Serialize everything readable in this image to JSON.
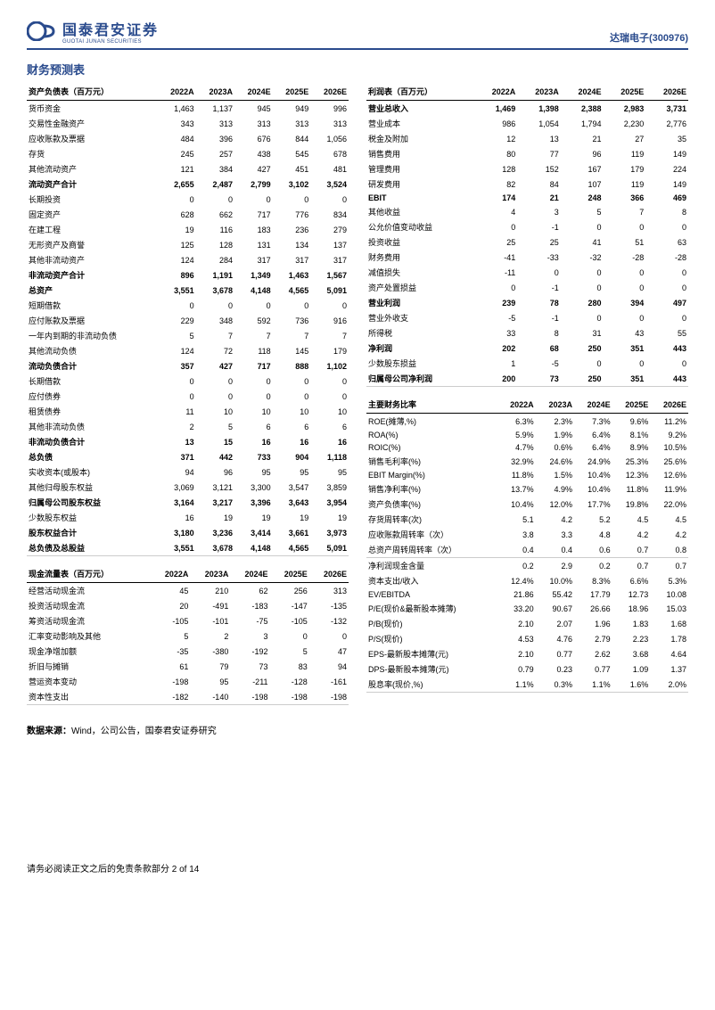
{
  "header": {
    "logo_cn": "国泰君安证券",
    "logo_en": "GUOTAI JUNAN SECURITIES",
    "stock": "达瑞电子(300976)",
    "logo_color": "#2a4b8d"
  },
  "title": "财务预测表",
  "years": [
    "2022A",
    "2023A",
    "2024E",
    "2025E",
    "2026E"
  ],
  "balance_sheet": {
    "title": "资产负债表（百万元）",
    "rows": [
      {
        "l": "货币资金",
        "v": [
          "1,463",
          "1,137",
          "945",
          "949",
          "996"
        ]
      },
      {
        "l": "交易性金融资产",
        "v": [
          "343",
          "313",
          "313",
          "313",
          "313"
        ]
      },
      {
        "l": "应收账款及票据",
        "v": [
          "484",
          "396",
          "676",
          "844",
          "1,056"
        ]
      },
      {
        "l": "存货",
        "v": [
          "245",
          "257",
          "438",
          "545",
          "678"
        ]
      },
      {
        "l": "其他流动资产",
        "v": [
          "121",
          "384",
          "427",
          "451",
          "481"
        ]
      },
      {
        "l": "流动资产合计",
        "v": [
          "2,655",
          "2,487",
          "2,799",
          "3,102",
          "3,524"
        ],
        "b": 1
      },
      {
        "l": "长期投资",
        "v": [
          "0",
          "0",
          "0",
          "0",
          "0"
        ]
      },
      {
        "l": "固定资产",
        "v": [
          "628",
          "662",
          "717",
          "776",
          "834"
        ]
      },
      {
        "l": "在建工程",
        "v": [
          "19",
          "116",
          "183",
          "236",
          "279"
        ]
      },
      {
        "l": "无形资产及商誉",
        "v": [
          "125",
          "128",
          "131",
          "134",
          "137"
        ]
      },
      {
        "l": "其他非流动资产",
        "v": [
          "124",
          "284",
          "317",
          "317",
          "317"
        ]
      },
      {
        "l": "非流动资产合计",
        "v": [
          "896",
          "1,191",
          "1,349",
          "1,463",
          "1,567"
        ],
        "b": 1
      },
      {
        "l": "总资产",
        "v": [
          "3,551",
          "3,678",
          "4,148",
          "4,565",
          "5,091"
        ],
        "b": 1
      },
      {
        "l": "短期借款",
        "v": [
          "0",
          "0",
          "0",
          "0",
          "0"
        ]
      },
      {
        "l": "应付账款及票据",
        "v": [
          "229",
          "348",
          "592",
          "736",
          "916"
        ]
      },
      {
        "l": "一年内到期的非流动负债",
        "v": [
          "5",
          "7",
          "7",
          "7",
          "7"
        ]
      },
      {
        "l": "其他流动负债",
        "v": [
          "124",
          "72",
          "118",
          "145",
          "179"
        ]
      },
      {
        "l": "流动负债合计",
        "v": [
          "357",
          "427",
          "717",
          "888",
          "1,102"
        ],
        "b": 1
      },
      {
        "l": "长期借款",
        "v": [
          "0",
          "0",
          "0",
          "0",
          "0"
        ]
      },
      {
        "l": "应付债券",
        "v": [
          "0",
          "0",
          "0",
          "0",
          "0"
        ]
      },
      {
        "l": "租赁债券",
        "v": [
          "11",
          "10",
          "10",
          "10",
          "10"
        ]
      },
      {
        "l": "其他非流动负债",
        "v": [
          "2",
          "5",
          "6",
          "6",
          "6"
        ]
      },
      {
        "l": "非流动负债合计",
        "v": [
          "13",
          "15",
          "16",
          "16",
          "16"
        ],
        "b": 1
      },
      {
        "l": "总负债",
        "v": [
          "371",
          "442",
          "733",
          "904",
          "1,118"
        ],
        "b": 1
      },
      {
        "l": "实收资本(或股本)",
        "v": [
          "94",
          "96",
          "95",
          "95",
          "95"
        ]
      },
      {
        "l": "其他归母股东权益",
        "v": [
          "3,069",
          "3,121",
          "3,300",
          "3,547",
          "3,859"
        ]
      },
      {
        "l": "归属母公司股东权益",
        "v": [
          "3,164",
          "3,217",
          "3,396",
          "3,643",
          "3,954"
        ],
        "b": 1
      },
      {
        "l": "少数股东权益",
        "v": [
          "16",
          "19",
          "19",
          "19",
          "19"
        ]
      },
      {
        "l": "股东权益合计",
        "v": [
          "3,180",
          "3,236",
          "3,414",
          "3,661",
          "3,973"
        ],
        "b": 1
      },
      {
        "l": "总负债及总股益",
        "v": [
          "3,551",
          "3,678",
          "4,148",
          "4,565",
          "5,091"
        ],
        "b": 1,
        "sep": 1
      }
    ]
  },
  "income": {
    "title": "利润表（百万元）",
    "rows": [
      {
        "l": "营业总收入",
        "v": [
          "1,469",
          "1,398",
          "2,388",
          "2,983",
          "3,731"
        ],
        "b": 1
      },
      {
        "l": "营业成本",
        "v": [
          "986",
          "1,054",
          "1,794",
          "2,230",
          "2,776"
        ]
      },
      {
        "l": "税金及附加",
        "v": [
          "12",
          "13",
          "21",
          "27",
          "35"
        ]
      },
      {
        "l": "销售费用",
        "v": [
          "80",
          "77",
          "96",
          "119",
          "149"
        ]
      },
      {
        "l": "管理费用",
        "v": [
          "128",
          "152",
          "167",
          "179",
          "224"
        ]
      },
      {
        "l": "研发费用",
        "v": [
          "82",
          "84",
          "107",
          "119",
          "149"
        ]
      },
      {
        "l": "EBIT",
        "v": [
          "174",
          "21",
          "248",
          "366",
          "469"
        ],
        "b": 1
      },
      {
        "l": "其他收益",
        "v": [
          "4",
          "3",
          "5",
          "7",
          "8"
        ]
      },
      {
        "l": "公允价值变动收益",
        "v": [
          "0",
          "-1",
          "0",
          "0",
          "0"
        ]
      },
      {
        "l": "投资收益",
        "v": [
          "25",
          "25",
          "41",
          "51",
          "63"
        ]
      },
      {
        "l": "财务费用",
        "v": [
          "-41",
          "-33",
          "-32",
          "-28",
          "-28"
        ]
      },
      {
        "l": "减值损失",
        "v": [
          "-11",
          "0",
          "0",
          "0",
          "0"
        ]
      },
      {
        "l": "资产处置损益",
        "v": [
          "0",
          "-1",
          "0",
          "0",
          "0"
        ]
      },
      {
        "l": "营业利润",
        "v": [
          "239",
          "78",
          "280",
          "394",
          "497"
        ],
        "b": 1
      },
      {
        "l": "营业外收支",
        "v": [
          "-5",
          "-1",
          "0",
          "0",
          "0"
        ]
      },
      {
        "l": "所得税",
        "v": [
          "33",
          "8",
          "31",
          "43",
          "55"
        ]
      },
      {
        "l": "净利润",
        "v": [
          "202",
          "68",
          "250",
          "351",
          "443"
        ],
        "b": 1
      },
      {
        "l": "少数股东损益",
        "v": [
          "1",
          "-5",
          "0",
          "0",
          "0"
        ]
      },
      {
        "l": "归属母公司净利润",
        "v": [
          "200",
          "73",
          "250",
          "351",
          "443"
        ],
        "b": 1,
        "sep": 1
      }
    ]
  },
  "ratios": {
    "title": "主要财务比率",
    "rows": [
      {
        "l": "ROE(摊薄,%)",
        "v": [
          "6.3%",
          "2.3%",
          "7.3%",
          "9.6%",
          "11.2%"
        ]
      },
      {
        "l": "ROA(%)",
        "v": [
          "5.9%",
          "1.9%",
          "6.4%",
          "8.1%",
          "9.2%"
        ]
      },
      {
        "l": "ROIC(%)",
        "v": [
          "4.7%",
          "0.6%",
          "6.4%",
          "8.9%",
          "10.5%"
        ]
      },
      {
        "l": "销售毛利率(%)",
        "v": [
          "32.9%",
          "24.6%",
          "24.9%",
          "25.3%",
          "25.6%"
        ]
      },
      {
        "l": "EBIT Margin(%)",
        "v": [
          "11.8%",
          "1.5%",
          "10.4%",
          "12.3%",
          "12.6%"
        ]
      },
      {
        "l": "销售净利率(%)",
        "v": [
          "13.7%",
          "4.9%",
          "10.4%",
          "11.8%",
          "11.9%"
        ]
      },
      {
        "l": "资产负债率(%)",
        "v": [
          "10.4%",
          "12.0%",
          "17.7%",
          "19.8%",
          "22.0%"
        ]
      },
      {
        "l": "存货周转率(次)",
        "v": [
          "5.1",
          "4.2",
          "5.2",
          "4.5",
          "4.5"
        ]
      },
      {
        "l": "应收账款周转率（次）",
        "v": [
          "3.8",
          "3.3",
          "4.8",
          "4.2",
          "4.2"
        ]
      },
      {
        "l": "总资产周转周转率（次）",
        "v": [
          "0.4",
          "0.4",
          "0.6",
          "0.7",
          "0.8"
        ],
        "sep": 1
      },
      {
        "l": "净利润现金含量",
        "v": [
          "0.2",
          "2.9",
          "0.2",
          "0.7",
          "0.7"
        ]
      },
      {
        "l": "资本支出/收入",
        "v": [
          "12.4%",
          "10.0%",
          "8.3%",
          "6.6%",
          "5.3%"
        ]
      },
      {
        "l": "EV/EBITDA",
        "v": [
          "21.86",
          "55.42",
          "17.79",
          "12.73",
          "10.08"
        ]
      },
      {
        "l": "P/E(现价&最新股本摊薄)",
        "v": [
          "33.20",
          "90.67",
          "26.66",
          "18.96",
          "15.03"
        ]
      },
      {
        "l": "P/B(现价)",
        "v": [
          "2.10",
          "2.07",
          "1.96",
          "1.83",
          "1.68"
        ]
      },
      {
        "l": "P/S(现价)",
        "v": [
          "4.53",
          "4.76",
          "2.79",
          "2.23",
          "1.78"
        ]
      },
      {
        "l": "EPS-最新股本摊薄(元)",
        "v": [
          "2.10",
          "0.77",
          "2.62",
          "3.68",
          "4.64"
        ]
      },
      {
        "l": "DPS-最新股本摊薄(元)",
        "v": [
          "0.79",
          "0.23",
          "0.77",
          "1.09",
          "1.37"
        ]
      },
      {
        "l": "股息率(现价,%)",
        "v": [
          "1.1%",
          "0.3%",
          "1.1%",
          "1.6%",
          "2.0%"
        ],
        "sep": 1
      }
    ]
  },
  "cashflow": {
    "title": "现金流量表（百万元）",
    "rows": [
      {
        "l": "经营活动现金流",
        "v": [
          "45",
          "210",
          "62",
          "256",
          "313"
        ]
      },
      {
        "l": "投资活动现金流",
        "v": [
          "20",
          "-491",
          "-183",
          "-147",
          "-135"
        ]
      },
      {
        "l": "筹资活动现金流",
        "v": [
          "-105",
          "-101",
          "-75",
          "-105",
          "-132"
        ]
      },
      {
        "l": "汇率变动影响及其他",
        "v": [
          "5",
          "2",
          "3",
          "0",
          "0"
        ]
      },
      {
        "l": "现金净增加额",
        "v": [
          "-35",
          "-380",
          "-192",
          "5",
          "47"
        ]
      },
      {
        "l": "折旧与摊销",
        "v": [
          "61",
          "79",
          "73",
          "83",
          "94"
        ]
      },
      {
        "l": "营运资本变动",
        "v": [
          "-198",
          "95",
          "-211",
          "-128",
          "-161"
        ]
      },
      {
        "l": "资本性支出",
        "v": [
          "-182",
          "-140",
          "-198",
          "-198",
          "-198"
        ],
        "sep": 1
      }
    ]
  },
  "source": {
    "label": "数据来源：",
    "text": "Wind，公司公告，国泰君安证券研究"
  },
  "footer": "请务必阅读正文之后的免责条款部分 2 of 14"
}
